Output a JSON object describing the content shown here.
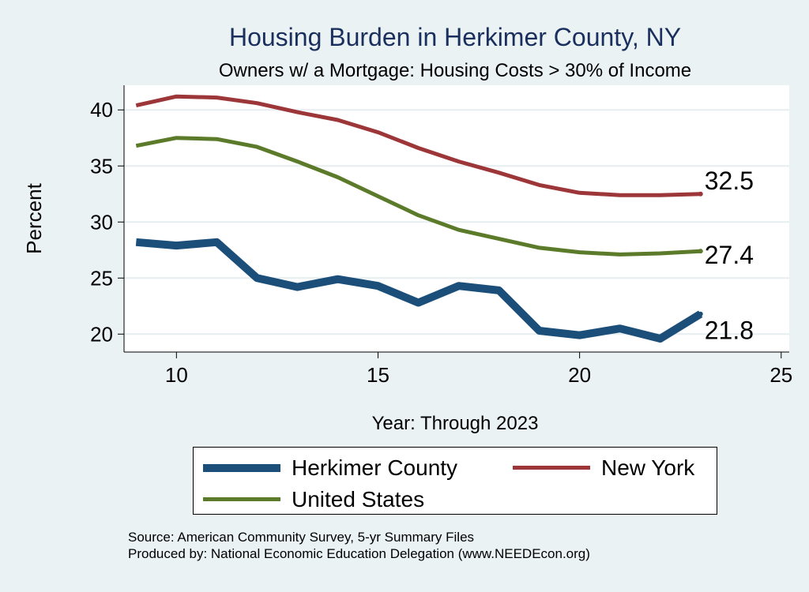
{
  "chart_data": {
    "type": "line",
    "title": "Housing Burden in Herkimer County, NY",
    "subtitle": "Owners w/ a Mortgage: Housing Costs > 30% of Income",
    "xlabel": "Year: Through 2023",
    "ylabel": "Percent",
    "xlim": [
      8.7,
      25.2
    ],
    "ylim": [
      18.4,
      42.2
    ],
    "xticks": [
      10,
      15,
      20,
      25
    ],
    "yticks": [
      20,
      25,
      30,
      35,
      40
    ],
    "grid": true,
    "legend_position": "bottom",
    "x": [
      9,
      10,
      11,
      12,
      13,
      14,
      15,
      16,
      17,
      18,
      19,
      20,
      21,
      22,
      23
    ],
    "series": [
      {
        "name": "Herkimer County",
        "color": "#1b4f7a",
        "values": [
          28.2,
          27.9,
          28.2,
          25.0,
          24.2,
          24.9,
          24.3,
          22.8,
          24.3,
          23.9,
          20.3,
          19.9,
          20.5,
          19.6,
          21.8
        ],
        "end_label": "21.8"
      },
      {
        "name": "New York",
        "color": "#9c3638",
        "values": [
          40.4,
          41.2,
          41.1,
          40.6,
          39.8,
          39.1,
          38.0,
          36.6,
          35.4,
          34.4,
          33.3,
          32.6,
          32.4,
          32.4,
          32.5
        ],
        "end_label": "32.5"
      },
      {
        "name": "United States",
        "color": "#5b7b2a",
        "values": [
          36.8,
          37.5,
          37.4,
          36.7,
          35.4,
          34.0,
          32.3,
          30.6,
          29.3,
          28.5,
          27.7,
          27.3,
          27.1,
          27.2,
          27.4
        ],
        "end_label": "27.4"
      }
    ]
  },
  "source_line": "Source: American Community Survey, 5-yr Summary Files",
  "produced_line": "Produced by: National Economic Education Delegation (www.NEEDEcon.org)"
}
